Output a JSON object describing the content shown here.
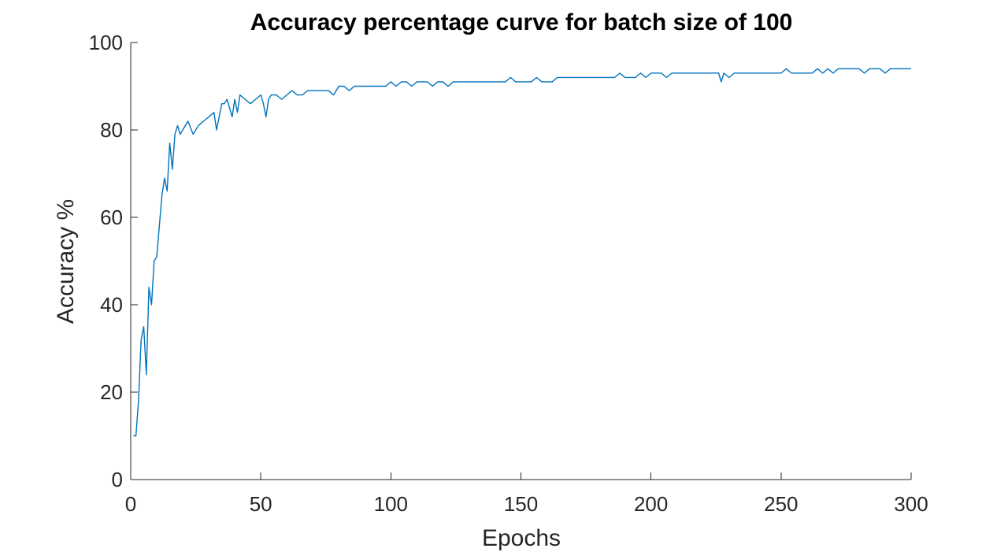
{
  "chart_data": {
    "type": "line",
    "title": "Accuracy percentage curve for batch size of 100",
    "xlabel": "Epochs",
    "ylabel": "Accuracy %",
    "xlim": [
      0,
      300
    ],
    "ylim": [
      0,
      100
    ],
    "xticks": [
      0,
      50,
      100,
      150,
      200,
      250,
      300
    ],
    "yticks": [
      0,
      20,
      40,
      60,
      80,
      100
    ],
    "grid": false,
    "series_color": "#0072BD",
    "series": [
      {
        "x": [
          1,
          2,
          3,
          4,
          5,
          6,
          7,
          8,
          9,
          10,
          11,
          12,
          13,
          14,
          15,
          16,
          17,
          18,
          19,
          20,
          22,
          24,
          26,
          28,
          30,
          32,
          33,
          34,
          35,
          36,
          37,
          38,
          39,
          40,
          41,
          42,
          44,
          46,
          48,
          50,
          51,
          52,
          53,
          54,
          56,
          58,
          60,
          62,
          64,
          66,
          68,
          70,
          72,
          74,
          76,
          78,
          80,
          82,
          84,
          86,
          88,
          90,
          92,
          94,
          96,
          98,
          100,
          102,
          104,
          106,
          108,
          110,
          112,
          114,
          116,
          118,
          120,
          122,
          124,
          126,
          128,
          130,
          132,
          134,
          136,
          138,
          140,
          142,
          144,
          146,
          148,
          150,
          152,
          154,
          156,
          158,
          160,
          162,
          164,
          166,
          168,
          170,
          172,
          174,
          176,
          178,
          180,
          182,
          184,
          186,
          188,
          190,
          192,
          194,
          196,
          198,
          200,
          202,
          204,
          206,
          208,
          210,
          212,
          214,
          216,
          218,
          220,
          222,
          224,
          226,
          227,
          228,
          230,
          232,
          234,
          236,
          238,
          240,
          242,
          244,
          246,
          248,
          250,
          252,
          254,
          256,
          258,
          260,
          262,
          264,
          266,
          268,
          270,
          272,
          274,
          276,
          278,
          280,
          282,
          284,
          286,
          288,
          290,
          292,
          294,
          296,
          298,
          300
        ],
        "y": [
          10,
          10,
          18,
          32,
          35,
          24,
          44,
          40,
          50,
          51,
          58,
          65,
          69,
          66,
          77,
          71,
          79,
          81,
          79,
          80,
          82,
          79,
          81,
          82,
          83,
          84,
          80,
          83,
          86,
          86,
          87,
          85,
          83,
          87,
          84,
          88,
          87,
          86,
          87,
          88,
          86,
          83,
          87,
          88,
          88,
          87,
          88,
          89,
          88,
          88,
          89,
          89,
          89,
          89,
          89,
          88,
          90,
          90,
          89,
          90,
          90,
          90,
          90,
          90,
          90,
          90,
          91,
          90,
          91,
          91,
          90,
          91,
          91,
          91,
          90,
          91,
          91,
          90,
          91,
          91,
          91,
          91,
          91,
          91,
          91,
          91,
          91,
          91,
          91,
          92,
          91,
          91,
          91,
          91,
          92,
          91,
          91,
          91,
          92,
          92,
          92,
          92,
          92,
          92,
          92,
          92,
          92,
          92,
          92,
          92,
          93,
          92,
          92,
          92,
          93,
          92,
          93,
          93,
          93,
          92,
          93,
          93,
          93,
          93,
          93,
          93,
          93,
          93,
          93,
          93,
          91,
          93,
          92,
          93,
          93,
          93,
          93,
          93,
          93,
          93,
          93,
          93,
          93,
          94,
          93,
          93,
          93,
          93,
          93,
          94,
          93,
          94,
          93,
          94,
          94,
          94,
          94,
          94,
          93,
          94,
          94,
          94,
          93,
          94,
          94,
          94,
          94,
          94
        ]
      }
    ]
  }
}
